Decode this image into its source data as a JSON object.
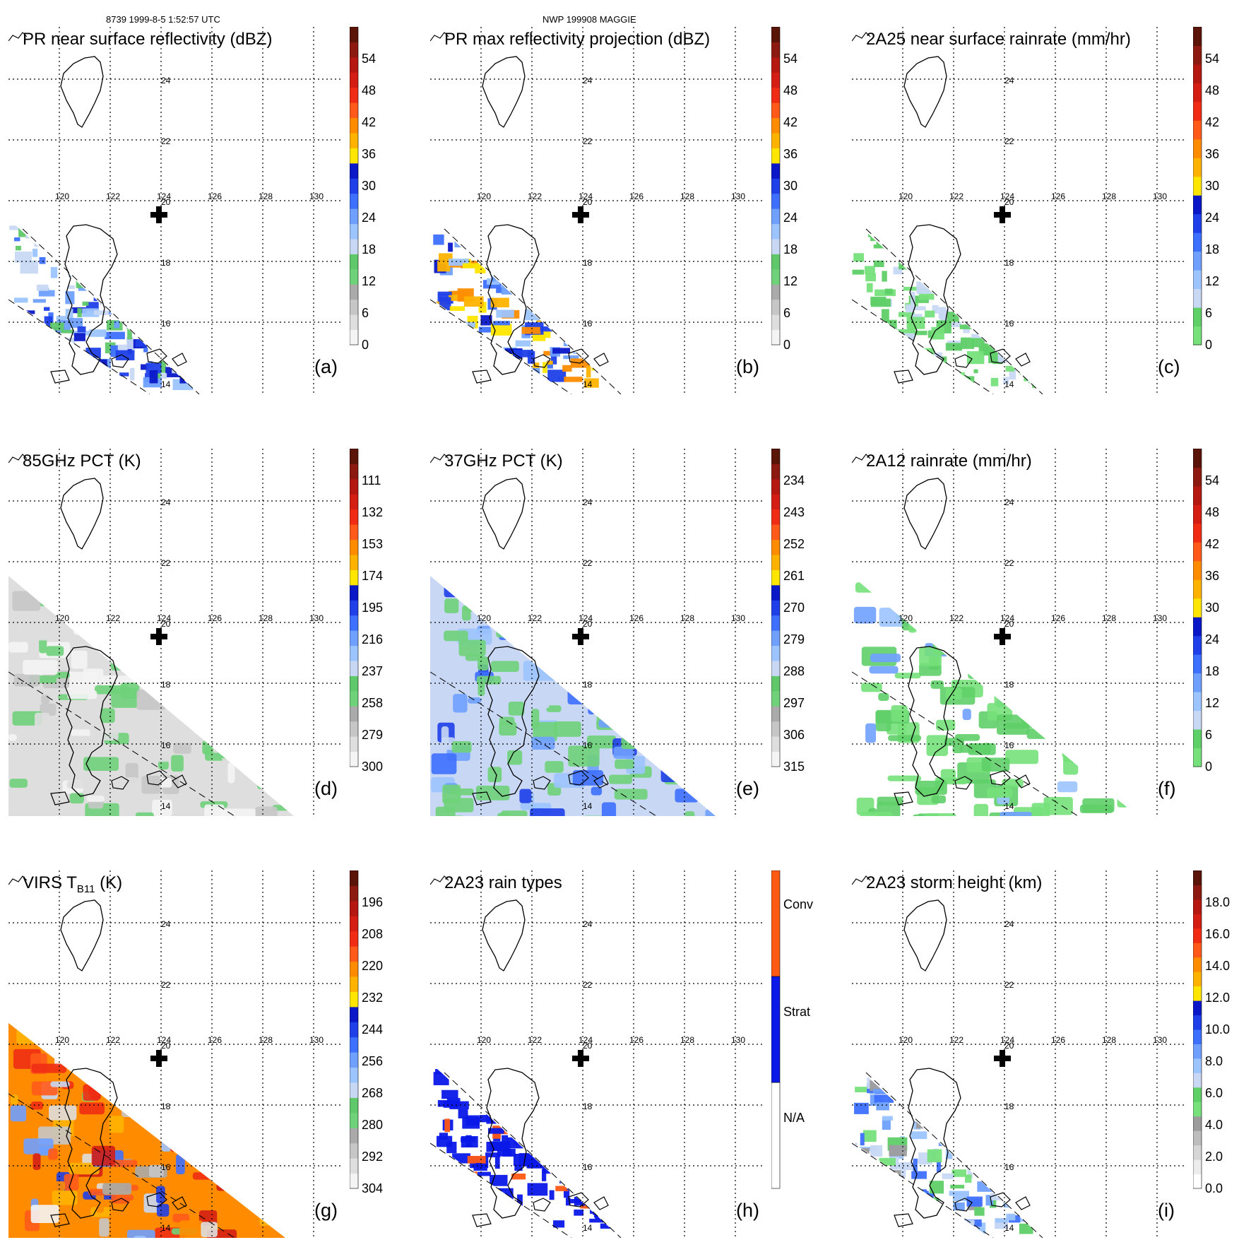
{
  "header": {
    "orbit_info": "8739 1999-8-5 1:52:57 UTC",
    "case_info": "NWP 199908 MAGGIE"
  },
  "axis": {
    "lon_labels": [
      "120",
      "122",
      "124",
      "126",
      "128",
      "130"
    ],
    "lat_labels": [
      "24",
      "22",
      "20",
      "18",
      "16",
      "14"
    ]
  },
  "palettes": {
    "standard": [
      "#f4f4f4",
      "#dedede",
      "#c6c6c6",
      "#aaaaaa",
      "#6fd27a",
      "#5fc86a",
      "#c8d8f4",
      "#9cc4ff",
      "#6fa0ff",
      "#3e70ff",
      "#1f3fe8",
      "#0a18c8",
      "#ffe600",
      "#ffb300",
      "#ff8c00",
      "#ff5a1a",
      "#f02d14",
      "#d41e14",
      "#b41810",
      "#8c1a10",
      "#5a1408"
    ],
    "rain": [
      "#76e07a",
      "#5fcf68",
      "#c8d8f4",
      "#9cc4ff",
      "#6fa0ff",
      "#3e70ff",
      "#1f3fe8",
      "#0a18c8",
      "#ffe600",
      "#ffb300",
      "#ff8c00",
      "#ff5a1a",
      "#f02d14",
      "#d41e14",
      "#b41810",
      "#8c1a10",
      "#5a1408"
    ],
    "storm": [
      "#ffffff",
      "#ececec",
      "#d6d6d6",
      "#bdbdbd",
      "#9c9c9c",
      "#76e07a",
      "#5fcf68",
      "#c8d8f4",
      "#9cc4ff",
      "#6fa0ff",
      "#3e70ff",
      "#1f3fe8",
      "#0a18c8",
      "#ffe600",
      "#ffb300",
      "#ff8c00",
      "#ff5a1a",
      "#f02d14",
      "#d41e14",
      "#b41810",
      "#8c1a10",
      "#5a1408"
    ]
  },
  "panels": [
    {
      "id": "a",
      "title": "PR near surface reflectivity (dBZ)",
      "tag": "(a)",
      "colorbar": {
        "palette": "standard",
        "labels": [
          "0",
          "6",
          "12",
          "18",
          "24",
          "30",
          "36",
          "42",
          "48",
          "54"
        ]
      },
      "swath": "pr",
      "field": "refl"
    },
    {
      "id": "b",
      "title": "PR max reflectivity projection (dBZ)",
      "tag": "(b)",
      "colorbar": {
        "palette": "standard",
        "labels": [
          "0",
          "6",
          "12",
          "18",
          "24",
          "30",
          "36",
          "42",
          "48",
          "54"
        ]
      },
      "swath": "pr",
      "field": "maxrefl"
    },
    {
      "id": "c",
      "title": "2A25 near surface rainrate (mm/hr)",
      "tag": "(c)",
      "colorbar": {
        "palette": "rain",
        "labels": [
          "0",
          "6",
          "12",
          "18",
          "24",
          "30",
          "36",
          "42",
          "48",
          "54"
        ]
      },
      "swath": "pr",
      "field": "rain"
    },
    {
      "id": "d",
      "title": "85GHz PCT (K)",
      "tag": "(d)",
      "colorbar": {
        "palette": "standard",
        "labels": [
          "300",
          "279",
          "258",
          "237",
          "216",
          "195",
          "174",
          "153",
          "132",
          "111"
        ]
      },
      "swath": "tmi",
      "field": "pct85"
    },
    {
      "id": "e",
      "title": "37GHz PCT (K)",
      "tag": "(e)",
      "colorbar": {
        "palette": "standard",
        "labels": [
          "315",
          "306",
          "297",
          "288",
          "279",
          "270",
          "261",
          "252",
          "243",
          "234"
        ]
      },
      "swath": "tmi",
      "field": "pct37"
    },
    {
      "id": "f",
      "title": "2A12 rainrate (mm/hr)",
      "tag": "(f)",
      "colorbar": {
        "palette": "rain",
        "labels": [
          "0",
          "6",
          "12",
          "18",
          "24",
          "30",
          "36",
          "42",
          "48",
          "54"
        ]
      },
      "swath": "tmi",
      "field": "rain12"
    },
    {
      "id": "g",
      "title": "VIRS T",
      "title_sub": "B11",
      "title_suffix": " (K)",
      "tag": "(g)",
      "colorbar": {
        "palette": "standard",
        "labels": [
          "304",
          "292",
          "280",
          "268",
          "256",
          "244",
          "232",
          "220",
          "208",
          "196"
        ]
      },
      "swath": "tmi",
      "field": "virs"
    },
    {
      "id": "h",
      "title": "2A23 rain types",
      "tag": "(h)",
      "colorbar": {
        "palette": "types",
        "labels": [
          "N/A",
          "Strat",
          "Conv"
        ],
        "colors": [
          "#ffffff",
          "#0a18e8",
          "#ff5a14"
        ]
      },
      "swath": "pr",
      "field": "types"
    },
    {
      "id": "i",
      "title": "2A23 storm height (km)",
      "tag": "(i)",
      "colorbar": {
        "palette": "storm",
        "labels": [
          "0.0",
          "2.0",
          "4.0",
          "6.0",
          "8.0",
          "10.0",
          "12.0",
          "14.0",
          "16.0",
          "18.0"
        ]
      },
      "swath": "pr",
      "field": "storm"
    }
  ]
}
